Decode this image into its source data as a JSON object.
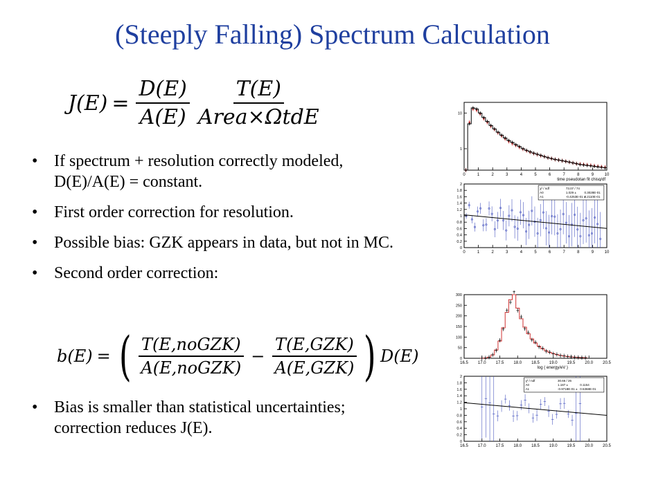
{
  "slide": {
    "title": "(Steeply Falling) Spectrum Calculation",
    "equation1": {
      "lhs": "J(E)",
      "eq": "=",
      "frac1_num": "D(E)",
      "frac1_den": "A(E)",
      "frac2_num": "T(E)",
      "frac2_den": "Area×ΩtdE"
    },
    "bullets": [
      "If spectrum + resolution correctly modeled, D(E)/A(E) = constant.",
      "First order correction for resolution.",
      "Possible bias:  GZK appears in data, but not in MC.",
      "Second order correction:"
    ],
    "equation2": {
      "lhs": "b(E)",
      "eq": "=",
      "frac1_num": "T(E,noGZK)",
      "frac1_den": "A(E,noGZK)",
      "minus": "−",
      "frac2_num": "T(E,GZK)",
      "frac2_den": "A(E,GZK)",
      "tail": "D(E)"
    },
    "last_bullet": "Bias is smaller than statistical uncertainties; correction reduces J(E).",
    "bullet_glyph": "•"
  },
  "plots": {
    "plot1": {
      "xlabel": "time pseudotan fit chisq/df",
      "xticks": [
        "0",
        "1",
        "2",
        "3",
        "4",
        "5",
        "6",
        "7",
        "8",
        "9",
        "10"
      ],
      "yticks": [
        "10",
        "1"
      ],
      "black_counts": [
        0.1,
        5.0,
        14.0,
        13.0,
        10.0,
        7.5,
        5.8,
        4.5,
        3.6,
        2.9,
        2.4,
        2.0,
        1.7,
        1.5,
        1.3,
        1.15,
        1.0,
        0.9,
        0.82,
        0.75,
        0.7,
        0.65,
        0.6,
        0.56,
        0.53,
        0.5,
        0.48,
        0.46,
        0.44,
        0.42,
        0.4,
        0.38,
        0.36,
        0.35,
        0.34,
        0.33,
        0.32,
        0.31,
        0.3,
        0.29
      ],
      "red_counts": [
        0.1,
        5.5,
        13.0,
        12.0,
        9.5,
        7.0,
        5.5,
        4.3,
        3.5,
        2.8,
        2.3,
        1.9,
        1.6,
        1.4,
        1.25,
        1.1,
        0.98,
        0.88,
        0.8,
        0.74,
        0.69,
        0.64,
        0.6,
        0.56,
        0.53,
        0.5,
        0.48,
        0.46,
        0.44,
        0.42,
        0.4,
        0.38,
        0.37,
        0.36,
        0.35,
        0.34,
        0.33,
        0.32,
        0.31,
        0.3
      ]
    },
    "plot2": {
      "xticks": [
        "0",
        "1",
        "2",
        "3",
        "4",
        "5",
        "6",
        "7",
        "8",
        "9",
        "10"
      ],
      "yticks": [
        "0",
        "0.2",
        "0.4",
        "0.6",
        "0.8",
        "1",
        "1.2",
        "1.4",
        "1.6",
        "1.8",
        "2"
      ],
      "stats": [
        [
          "χ² / ndf",
          "73.07 / 74"
        ],
        [
          "A0",
          "1.029 ±",
          "0.3028E-01"
        ],
        [
          "A1",
          "-0.4253E-01 ±",
          "0.2110E-01"
        ]
      ],
      "fit_a0": 1.029,
      "fit_a1": -0.04253
    },
    "plot3": {
      "xlabel": "log ( energy/eV )",
      "xticks": [
        "16.5",
        "17.0",
        "17.5",
        "18.0",
        "18.5",
        "19.0",
        "19.5",
        "20.0",
        "20.5"
      ],
      "yticks": [
        "0",
        "50",
        "100",
        "150",
        "200",
        "250",
        "300"
      ]
    },
    "plot4": {
      "xticks": [
        "16.5",
        "17.0",
        "17.5",
        "18.0",
        "18.5",
        "19.0",
        "19.5",
        "20.0",
        "20.5"
      ],
      "yticks": [
        "0",
        "0.2",
        "0.4",
        "0.6",
        "0.8",
        "1",
        "1.2",
        "1.4",
        "1.6",
        "1.8",
        "2"
      ],
      "stats": [
        [
          "χ² / ndf",
          "30.66 / 26"
        ],
        [
          "A0",
          "1.187 ±",
          "0.1154"
        ],
        [
          "A1",
          "-0.9718E-01 ±",
          "0.5368E-01"
        ]
      ],
      "fit_a0": 1.187,
      "fit_a1": -0.09718
    }
  }
}
